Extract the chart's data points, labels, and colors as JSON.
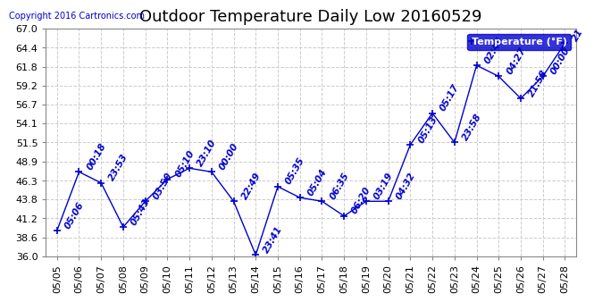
{
  "title": "Outdoor Temperature Daily Low 20160529",
  "copyright": "Copyright 2016 Cartronics.com",
  "legend_label": "Temperature (°F)",
  "x_labels": [
    "05/05",
    "05/06",
    "05/07",
    "05/08",
    "05/09",
    "05/10",
    "05/11",
    "05/12",
    "05/13",
    "05/14",
    "05/15",
    "05/16",
    "05/17",
    "05/18",
    "05/19",
    "05/20",
    "05/21",
    "05/22",
    "05/23",
    "05/24",
    "05/25",
    "05/26",
    "05/27",
    "05/28"
  ],
  "y_values": [
    39.5,
    47.5,
    46.0,
    40.0,
    43.5,
    46.5,
    48.0,
    47.5,
    43.5,
    36.2,
    45.5,
    44.0,
    43.5,
    41.5,
    43.5,
    43.5,
    51.2,
    55.5,
    51.5,
    62.0,
    60.5,
    57.5,
    60.5,
    65.0
  ],
  "annotations": [
    "05:06",
    "00:18",
    "23:53",
    "05:43",
    "03:50",
    "05:10",
    "23:10",
    "00:00",
    "22:49",
    "23:41",
    "05:35",
    "05:04",
    "06:35",
    "06:20",
    "03:19",
    "04:32",
    "05:13",
    "05:17",
    "23:58",
    "02:45",
    "04:27",
    "21:58",
    "00:00",
    "21"
  ],
  "ylim": [
    36.0,
    67.0
  ],
  "yticks": [
    36.0,
    38.6,
    41.2,
    43.8,
    46.3,
    48.9,
    51.5,
    54.1,
    56.7,
    59.2,
    61.8,
    64.4,
    67.0
  ],
  "line_color": "#0000cc",
  "marker_color": "#0000cc",
  "bg_color": "#ffffff",
  "grid_color": "#cccccc",
  "title_fontsize": 13,
  "label_fontsize": 8,
  "annot_fontsize": 7.5
}
